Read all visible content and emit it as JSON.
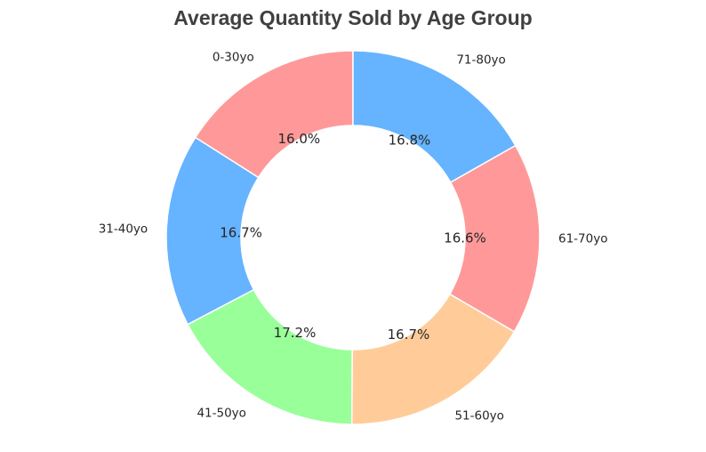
{
  "chart_data": {
    "type": "pie",
    "donut": true,
    "title": "Average Quantity Sold by Age Group",
    "start_angle_deg": 90,
    "direction": "counterclockwise",
    "categories": [
      "0-30yo",
      "31-40yo",
      "41-50yo",
      "51-60yo",
      "61-70yo",
      "71-80yo"
    ],
    "values": [
      16.0,
      16.7,
      17.2,
      16.7,
      16.6,
      16.8
    ],
    "percent_labels": [
      "16.0%",
      "16.7%",
      "17.2%",
      "16.7%",
      "16.6%",
      "16.8%"
    ],
    "colors": [
      "#ff9999",
      "#66b3ff",
      "#99ff99",
      "#ffcc99",
      "#ff9999",
      "#66b3ff"
    ],
    "legend": "none"
  }
}
